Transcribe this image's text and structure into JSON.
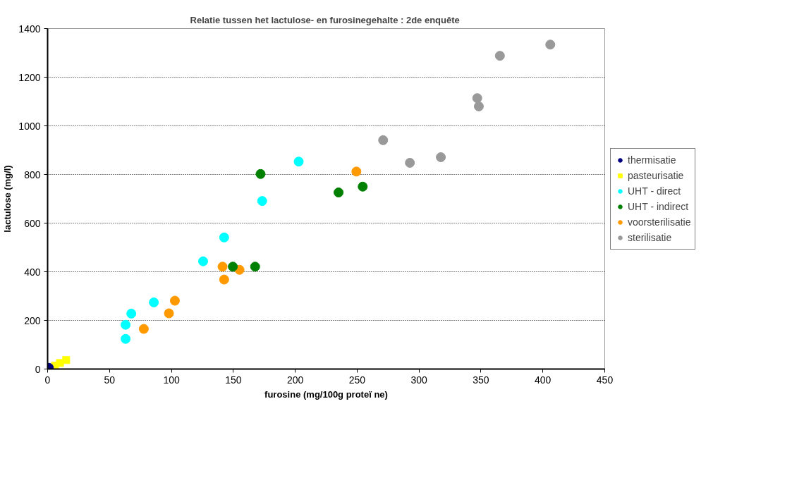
{
  "chart_data": {
    "type": "scatter",
    "title": "Relatie tussen het lactulose- en furosinegehalte  : 2de enquête",
    "xlabel": "furosine (mg/100g proteï ne)",
    "ylabel": "lactulose (mg/l)",
    "xlim": [
      0,
      450
    ],
    "ylim": [
      0,
      1400
    ],
    "xticks": [
      0,
      50,
      100,
      150,
      200,
      250,
      300,
      350,
      400,
      450
    ],
    "yticks": [
      0,
      200,
      400,
      600,
      800,
      1000,
      1200,
      1400
    ],
    "grid": "y",
    "legend": "right",
    "marker": "circle",
    "series": [
      {
        "name": "thermisatie",
        "color": "#000080",
        "x": [
          1
        ],
        "values": [
          5
        ]
      },
      {
        "name": "pasteurisatie",
        "color": "#ffff00",
        "marker": "square",
        "x": [
          6,
          10,
          15
        ],
        "values": [
          14,
          25,
          37
        ]
      },
      {
        "name": "UHT - direct",
        "color": "#00ffff",
        "x": [
          63,
          63,
          67.6,
          85.8,
          125.6,
          142.6,
          173.3,
          202.8
        ],
        "values": [
          124,
          182,
          228,
          274,
          443,
          541,
          691,
          853
        ]
      },
      {
        "name": "UHT - indirect",
        "color": "#008000",
        "x": [
          149.6,
          167.6,
          172,
          235,
          254.5
        ],
        "values": [
          421,
          421,
          802,
          726,
          750
        ]
      },
      {
        "name": "voorsterilisatie",
        "color": "#ff9900",
        "x": [
          77.7,
          98,
          102.8,
          141.3,
          142.6,
          155,
          249.4
        ],
        "values": [
          165,
          229,
          281,
          421,
          368,
          408,
          812
        ]
      },
      {
        "name": "sterilisatie",
        "color": "#999999",
        "x": [
          271,
          292.6,
          317.6,
          347,
          348.3,
          365.3,
          406
        ],
        "values": [
          941,
          848,
          871,
          1114,
          1080,
          1288,
          1334
        ]
      }
    ]
  }
}
